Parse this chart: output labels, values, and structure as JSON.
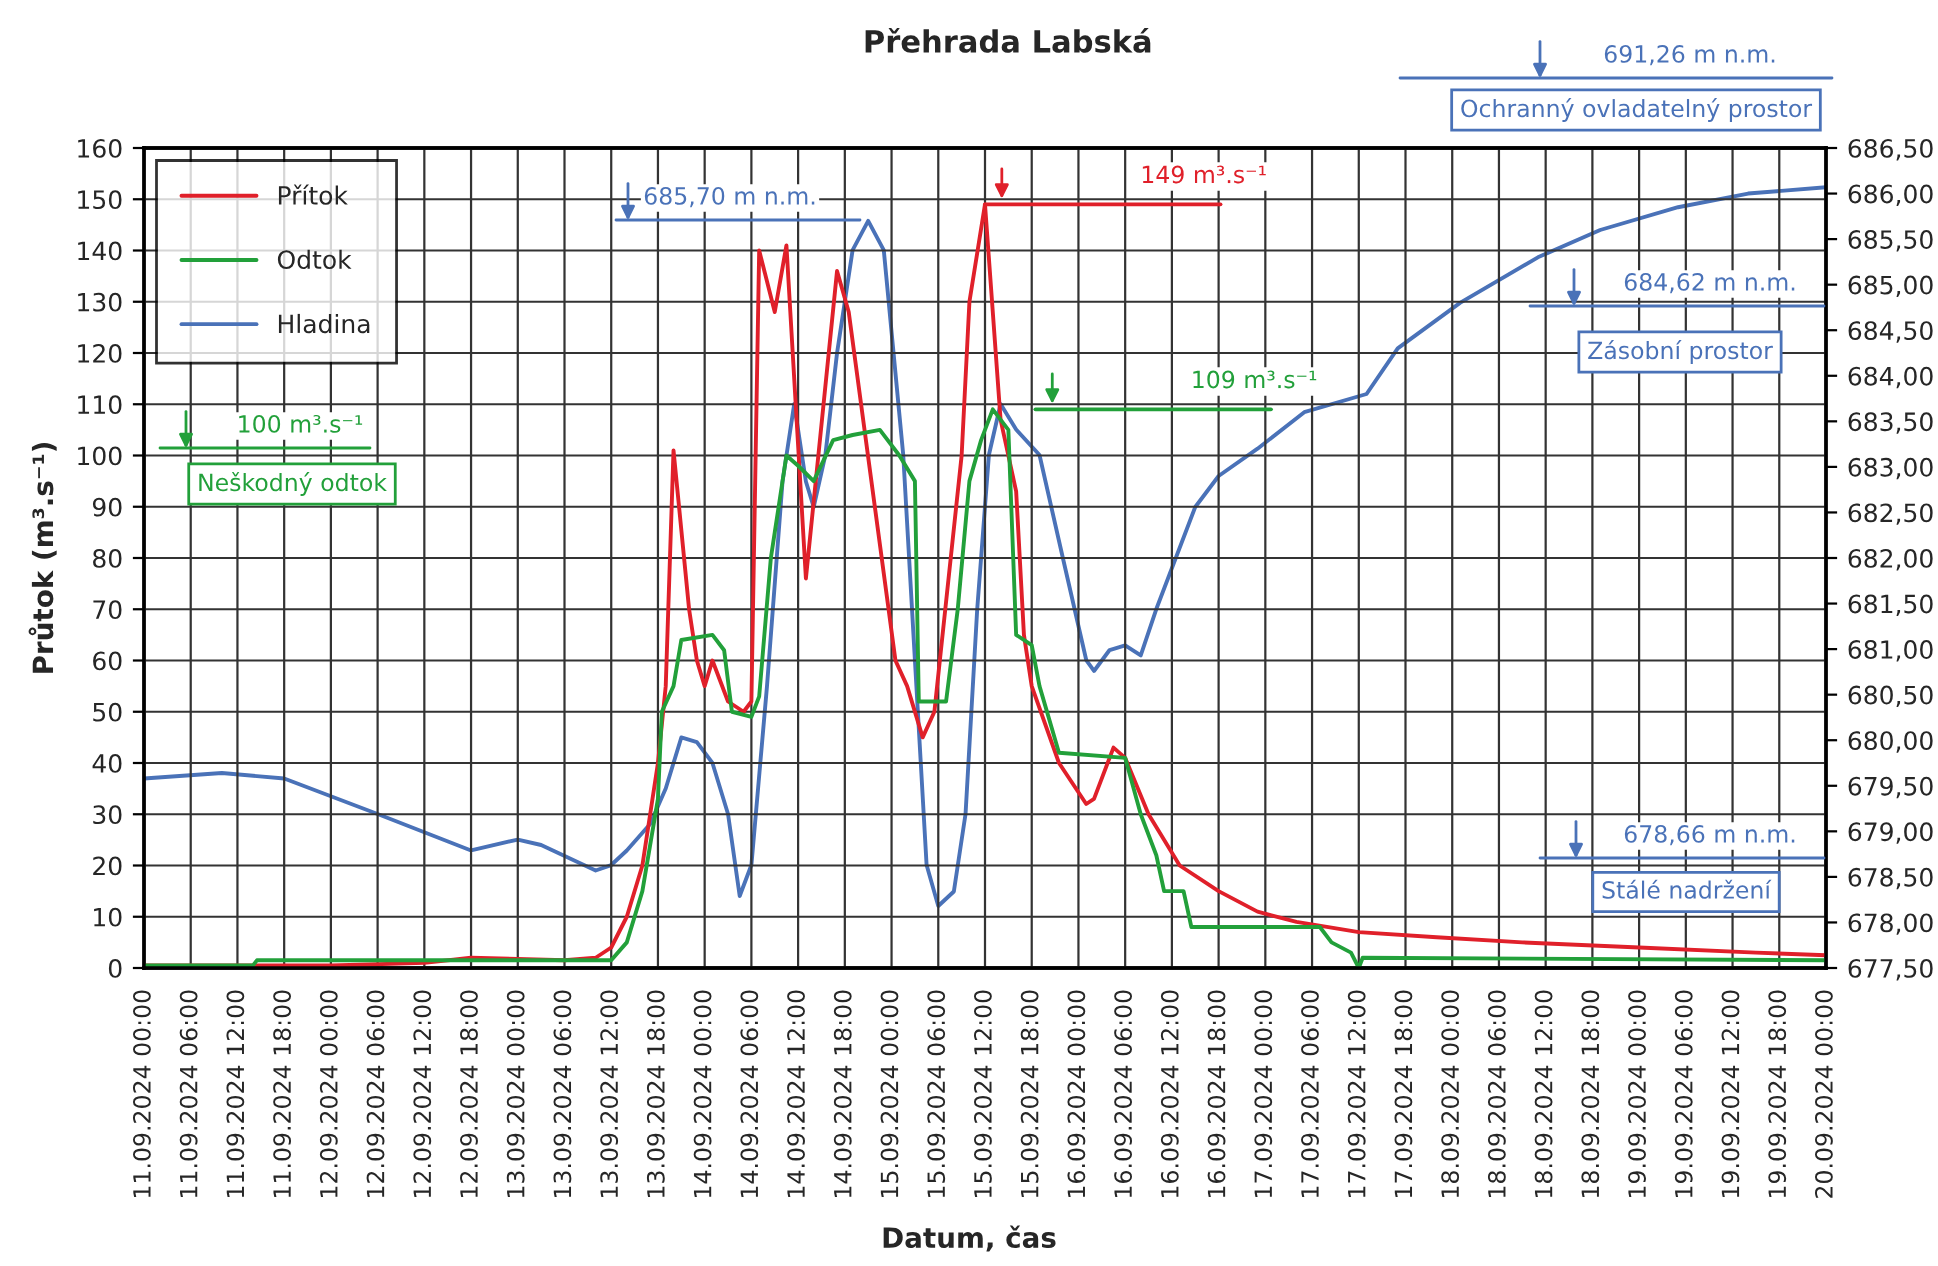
{
  "chart_data": {
    "type": "line",
    "title": "Přehrada Labská",
    "xlabel": "Datum, čas",
    "ylabel": "Průtok (m³.s⁻¹)",
    "xlim": [
      "2024-09-11T00:00",
      "2024-09-20T00:00"
    ],
    "xticks": [
      {
        "value": "2024-09-11T00:00",
        "label": "11.09.2024 00:00"
      },
      {
        "value": "2024-09-11T06:00",
        "label": "11.09.2024 06:00"
      },
      {
        "value": "2024-09-11T12:00",
        "label": "11.09.2024 12:00"
      },
      {
        "value": "2024-09-11T18:00",
        "label": "11.09.2024 18:00"
      },
      {
        "value": "2024-09-12T00:00",
        "label": "12.09.2024 00:00"
      },
      {
        "value": "2024-09-12T06:00",
        "label": "12.09.2024 06:00"
      },
      {
        "value": "2024-09-12T12:00",
        "label": "12.09.2024 12:00"
      },
      {
        "value": "2024-09-12T18:00",
        "label": "12.09.2024 18:00"
      },
      {
        "value": "2024-09-13T00:00",
        "label": "13.09.2024 00:00"
      },
      {
        "value": "2024-09-13T06:00",
        "label": "13.09.2024 06:00"
      },
      {
        "value": "2024-09-13T12:00",
        "label": "13.09.2024 12:00"
      },
      {
        "value": "2024-09-13T18:00",
        "label": "13.09.2024 18:00"
      },
      {
        "value": "2024-09-14T00:00",
        "label": "14.09.2024 00:00"
      },
      {
        "value": "2024-09-14T06:00",
        "label": "14.09.2024 06:00"
      },
      {
        "value": "2024-09-14T12:00",
        "label": "14.09.2024 12:00"
      },
      {
        "value": "2024-09-14T18:00",
        "label": "14.09.2024 18:00"
      },
      {
        "value": "2024-09-15T00:00",
        "label": "15.09.2024 00:00"
      },
      {
        "value": "2024-09-15T06:00",
        "label": "15.09.2024 06:00"
      },
      {
        "value": "2024-09-15T12:00",
        "label": "15.09.2024 12:00"
      },
      {
        "value": "2024-09-15T18:00",
        "label": "15.09.2024 18:00"
      },
      {
        "value": "2024-09-16T00:00",
        "label": "16.09.2024 00:00"
      },
      {
        "value": "2024-09-16T06:00",
        "label": "16.09.2024 06:00"
      },
      {
        "value": "2024-09-16T12:00",
        "label": "16.09.2024 12:00"
      },
      {
        "value": "2024-09-16T18:00",
        "label": "16.09.2024 18:00"
      },
      {
        "value": "2024-09-17T00:00",
        "label": "17.09.2024 00:00"
      },
      {
        "value": "2024-09-17T06:00",
        "label": "17.09.2024 06:00"
      },
      {
        "value": "2024-09-17T12:00",
        "label": "17.09.2024 12:00"
      },
      {
        "value": "2024-09-17T18:00",
        "label": "17.09.2024 18:00"
      },
      {
        "value": "2024-09-18T00:00",
        "label": "18.09.2024 00:00"
      },
      {
        "value": "2024-09-18T06:00",
        "label": "18.09.2024 06:00"
      },
      {
        "value": "2024-09-18T12:00",
        "label": "18.09.2024 12:00"
      },
      {
        "value": "2024-09-18T18:00",
        "label": "18.09.2024 18:00"
      },
      {
        "value": "2024-09-19T00:00",
        "label": "19.09.2024 00:00"
      },
      {
        "value": "2024-09-19T06:00",
        "label": "19.09.2024 06:00"
      },
      {
        "value": "2024-09-19T12:00",
        "label": "19.09.2024 12:00"
      },
      {
        "value": "2024-09-19T18:00",
        "label": "19.09.2024 18:00"
      },
      {
        "value": "2024-09-20T00:00",
        "label": "20.09.2024 00:00"
      }
    ],
    "ylim": [
      0,
      160
    ],
    "yticks": [
      0,
      10,
      20,
      30,
      40,
      50,
      60,
      70,
      80,
      90,
      100,
      110,
      120,
      130,
      140,
      150,
      160
    ],
    "y2lim": [
      677.5,
      686.5
    ],
    "y2ticks": [
      {
        "value": 677.5,
        "label": "677,50"
      },
      {
        "value": 678.0,
        "label": "678,00"
      },
      {
        "value": 678.5,
        "label": "678,50"
      },
      {
        "value": 679.0,
        "label": "679,00"
      },
      {
        "value": 679.5,
        "label": "679,50"
      },
      {
        "value": 680.0,
        "label": "680,00"
      },
      {
        "value": 680.5,
        "label": "680,50"
      },
      {
        "value": 681.0,
        "label": "681,00"
      },
      {
        "value": 681.5,
        "label": "681,50"
      },
      {
        "value": 682.0,
        "label": "682,00"
      },
      {
        "value": 682.5,
        "label": "682,50"
      },
      {
        "value": 683.0,
        "label": "683,00"
      },
      {
        "value": 683.5,
        "label": "683,50"
      },
      {
        "value": 684.0,
        "label": "684,00"
      },
      {
        "value": 684.5,
        "label": "684,50"
      },
      {
        "value": 685.0,
        "label": "685,00"
      },
      {
        "value": 685.5,
        "label": "685,50"
      },
      {
        "value": 686.0,
        "label": "686,00"
      },
      {
        "value": 686.5,
        "label": "686,50"
      }
    ],
    "grid": true,
    "legend": "top left",
    "series": [
      {
        "name": "Přítok",
        "color": "#e0202a",
        "x": [
          "2024-09-11T00:00",
          "2024-09-12T00:00",
          "2024-09-12T12:00",
          "2024-09-12T18:00",
          "2024-09-13T06:00",
          "2024-09-13T10:00",
          "2024-09-13T12:00",
          "2024-09-13T14:00",
          "2024-09-13T16:00",
          "2024-09-13T18:00",
          "2024-09-13T19:00",
          "2024-09-13T20:00",
          "2024-09-13T22:00",
          "2024-09-13T23:00",
          "2024-09-14T00:00",
          "2024-09-14T01:00",
          "2024-09-14T03:00",
          "2024-09-14T05:00",
          "2024-09-14T06:00",
          "2024-09-14T07:00",
          "2024-09-14T09:00",
          "2024-09-14T10:30",
          "2024-09-14T13:00",
          "2024-09-14T17:00",
          "2024-09-14T18:30",
          "2024-09-15T00:30",
          "2024-09-15T02:00",
          "2024-09-15T04:00",
          "2024-09-15T05:30",
          "2024-09-15T09:00",
          "2024-09-15T10:00",
          "2024-09-15T12:00",
          "2024-09-15T14:00",
          "2024-09-15T16:00",
          "2024-09-15T17:00",
          "2024-09-15T18:00",
          "2024-09-15T21:30",
          "2024-09-16T01:00",
          "2024-09-16T02:00",
          "2024-09-16T04:30",
          "2024-09-16T06:00",
          "2024-09-16T09:00",
          "2024-09-16T13:00",
          "2024-09-16T18:00",
          "2024-09-16T23:00",
          "2024-09-17T04:00",
          "2024-09-17T12:00",
          "2024-09-17T22:00",
          "2024-09-18T09:00",
          "2024-09-19T00:00",
          "2024-09-19T15:00",
          "2024-09-20T00:00"
        ],
        "values": [
          0.5,
          0.5,
          1,
          2,
          1.5,
          2,
          4,
          10,
          20,
          40,
          55,
          101,
          70,
          60,
          55,
          60,
          52,
          50,
          52,
          140,
          128,
          141,
          76,
          136,
          128,
          60,
          55,
          45,
          50,
          100,
          130,
          149,
          107,
          93,
          65,
          55,
          40,
          32,
          33,
          43,
          41,
          30,
          20,
          15,
          11,
          9,
          7,
          6,
          5,
          4,
          3,
          2.5
        ]
      },
      {
        "name": "Odtok",
        "color": "#22a03a",
        "x": [
          "2024-09-11T00:00",
          "2024-09-11T14:00",
          "2024-09-11T14:30",
          "2024-09-13T12:00",
          "2024-09-13T14:00",
          "2024-09-13T16:00",
          "2024-09-13T18:00",
          "2024-09-13T18:30",
          "2024-09-13T20:00",
          "2024-09-13T21:00",
          "2024-09-14T01:00",
          "2024-09-14T02:30",
          "2024-09-14T03:30",
          "2024-09-14T06:00",
          "2024-09-14T07:00",
          "2024-09-14T08:30",
          "2024-09-14T09:00",
          "2024-09-14T10:30",
          "2024-09-14T12:00",
          "2024-09-14T14:00",
          "2024-09-14T16:30",
          "2024-09-14T19:00",
          "2024-09-14T22:30",
          "2024-09-15T01:00",
          "2024-09-15T03:00",
          "2024-09-15T03:30",
          "2024-09-15T07:00",
          "2024-09-15T08:30",
          "2024-09-15T10:00",
          "2024-09-15T11:30",
          "2024-09-15T13:00",
          "2024-09-15T15:00",
          "2024-09-15T16:00",
          "2024-09-15T18:00",
          "2024-09-15T19:00",
          "2024-09-15T21:30",
          "2024-09-16T06:00",
          "2024-09-16T08:00",
          "2024-09-16T10:00",
          "2024-09-16T11:00",
          "2024-09-16T13:30",
          "2024-09-16T14:30",
          "2024-09-17T07:00",
          "2024-09-17T08:30",
          "2024-09-17T11:00",
          "2024-09-17T12:00",
          "2024-09-17T12:30",
          "2024-09-20T00:00"
        ],
        "values": [
          0.5,
          0.5,
          1.5,
          1.5,
          5,
          15,
          33,
          50,
          55,
          64,
          65,
          62,
          50,
          49,
          53,
          80,
          85,
          100,
          98,
          95,
          103,
          104,
          105,
          100,
          95,
          52,
          52,
          70,
          95,
          103,
          109,
          105,
          65,
          63,
          55,
          42,
          41,
          30,
          22,
          15,
          15,
          8,
          8,
          5,
          3,
          0,
          2,
          1.5
        ]
      },
      {
        "name": "Hladina",
        "color": "#4a72b8",
        "axis": "y2",
        "x": [
          "2024-09-11T00:00",
          "2024-09-11T10:00",
          "2024-09-11T18:00",
          "2024-09-12T06:00",
          "2024-09-12T18:00",
          "2024-09-13T00:00",
          "2024-09-13T03:00",
          "2024-09-13T10:00",
          "2024-09-13T12:00",
          "2024-09-13T14:00",
          "2024-09-13T17:00",
          "2024-09-13T19:00",
          "2024-09-13T21:00",
          "2024-09-13T23:00",
          "2024-09-14T01:00",
          "2024-09-14T03:00",
          "2024-09-14T04:30",
          "2024-09-14T06:00",
          "2024-09-14T08:00",
          "2024-09-14T10:00",
          "2024-09-14T11:30",
          "2024-09-14T13:00",
          "2024-09-14T14:00",
          "2024-09-14T15:30",
          "2024-09-14T17:00",
          "2024-09-14T19:00",
          "2024-09-14T21:00",
          "2024-09-14T23:00",
          "2024-09-15T01:30",
          "2024-09-15T03:00",
          "2024-09-15T04:30",
          "2024-09-15T06:00",
          "2024-09-15T08:00",
          "2024-09-15T09:30",
          "2024-09-15T11:00",
          "2024-09-15T12:30",
          "2024-09-15T14:00",
          "2024-09-15T16:00",
          "2024-09-15T19:00",
          "2024-09-15T22:00",
          "2024-09-16T01:00",
          "2024-09-16T02:00",
          "2024-09-16T04:00",
          "2024-09-16T06:00",
          "2024-09-16T08:00",
          "2024-09-16T10:00",
          "2024-09-16T15:00",
          "2024-09-16T18:00",
          "2024-09-16T23:00",
          "2024-09-17T05:00",
          "2024-09-17T13:00",
          "2024-09-17T17:00",
          "2024-09-18T01:00",
          "2024-09-18T11:00",
          "2024-09-18T19:00",
          "2024-09-19T05:00",
          "2024-09-19T14:00",
          "2024-09-20T00:00"
        ],
        "values": [
          679.58,
          679.64,
          679.58,
          679.19,
          678.79,
          678.91,
          678.85,
          678.57,
          678.63,
          678.79,
          679.08,
          679.47,
          680.03,
          679.98,
          679.75,
          679.19,
          678.29,
          678.63,
          680.59,
          682.84,
          683.69,
          682.84,
          682.56,
          683.13,
          684.25,
          685.38,
          685.7,
          685.38,
          683.13,
          680.88,
          678.63,
          678.18,
          678.34,
          679.19,
          681.44,
          683.13,
          683.69,
          683.41,
          683.13,
          682.0,
          680.88,
          680.76,
          680.99,
          681.04,
          680.93,
          681.44,
          682.56,
          682.9,
          683.2,
          683.6,
          683.8,
          684.3,
          684.8,
          685.3,
          685.6,
          685.85,
          686.0,
          686.07
        ]
      }
    ],
    "ref_lines": [
      {
        "axis": "y",
        "value": 149,
        "label": "149 m³.s⁻¹",
        "color": "#e0202a"
      },
      {
        "axis": "y",
        "value": 109,
        "label": "109 m³.s⁻¹",
        "color": "#22a03a"
      }
    ],
    "annotations": [
      "685,70 m n.m.",
      "100 m³.s⁻¹",
      "Neškodný odtok",
      "691,26 m n.m.",
      "Ochranný ovladatelný prostor",
      "684,62 m n.m.",
      "Zásobní prostor",
      "678,66 m n.m.",
      "Stálé nadržení"
    ]
  }
}
